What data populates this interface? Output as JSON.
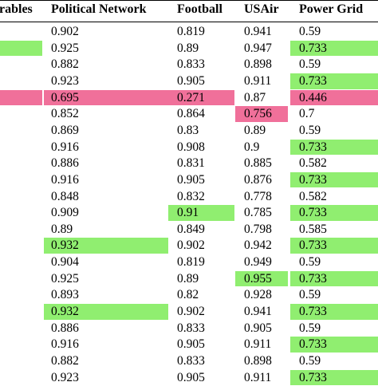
{
  "headers": [
    "rables",
    "Political Network",
    "Football",
    "USAir",
    "Power Grid"
  ],
  "colors": {
    "green_highlight": "#90ee70",
    "pink_highlight": "#f0709a"
  },
  "rows": [
    {
      "political": "0.902",
      "football": "0.819",
      "usair": "0.941",
      "power": "0.59",
      "hl": {
        "left": "",
        "political": "",
        "football": "",
        "usair": "",
        "power": ""
      }
    },
    {
      "political": "0.925",
      "football": "0.89",
      "usair": "0.947",
      "power": "0.733",
      "hl": {
        "left": "green",
        "political": "",
        "football": "",
        "usair": "",
        "power": "green"
      }
    },
    {
      "political": "0.882",
      "football": "0.833",
      "usair": "0.898",
      "power": "0.59",
      "hl": {
        "left": "",
        "political": "",
        "football": "",
        "usair": "",
        "power": ""
      }
    },
    {
      "political": "0.923",
      "football": "0.905",
      "usair": "0.911",
      "power": "0.733",
      "hl": {
        "left": "",
        "political": "",
        "football": "",
        "usair": "",
        "power": "green"
      }
    },
    {
      "political": "0.695",
      "football": "0.271",
      "usair": "0.87",
      "power": "0.446",
      "hl": {
        "left": "pink",
        "political": "pink",
        "football": "pink",
        "usair": "",
        "power": "pink"
      }
    },
    {
      "political": "0.852",
      "football": "0.864",
      "usair": "0.756",
      "power": "0.7",
      "hl": {
        "left": "",
        "political": "",
        "football": "",
        "usair": "pink",
        "power": ""
      }
    },
    {
      "political": "0.869",
      "football": "0.83",
      "usair": "0.89",
      "power": "0.59",
      "hl": {
        "left": "",
        "political": "",
        "football": "",
        "usair": "",
        "power": ""
      }
    },
    {
      "political": "0.916",
      "football": "0.908",
      "usair": "0.9",
      "power": "0.733",
      "hl": {
        "left": "",
        "political": "",
        "football": "",
        "usair": "",
        "power": "green"
      }
    },
    {
      "political": "0.886",
      "football": "0.831",
      "usair": "0.885",
      "power": "0.582",
      "hl": {
        "left": "",
        "political": "",
        "football": "",
        "usair": "",
        "power": ""
      }
    },
    {
      "political": "0.916",
      "football": "0.905",
      "usair": "0.876",
      "power": "0.733",
      "hl": {
        "left": "",
        "political": "",
        "football": "",
        "usair": "",
        "power": "green"
      }
    },
    {
      "political": "0.848",
      "football": "0.832",
      "usair": "0.778",
      "power": "0.582",
      "hl": {
        "left": "",
        "political": "",
        "football": "",
        "usair": "",
        "power": ""
      }
    },
    {
      "political": "0.909",
      "football": "0.91",
      "usair": "0.785",
      "power": "0.733",
      "hl": {
        "left": "",
        "political": "",
        "football": "green",
        "usair": "",
        "power": "green"
      }
    },
    {
      "political": "0.89",
      "football": "0.849",
      "usair": "0.798",
      "power": "0.585",
      "hl": {
        "left": "",
        "political": "",
        "football": "",
        "usair": "",
        "power": ""
      }
    },
    {
      "political": "0.932",
      "football": "0.902",
      "usair": "0.942",
      "power": "0.733",
      "hl": {
        "left": "",
        "political": "green",
        "football": "",
        "usair": "",
        "power": "green"
      }
    },
    {
      "political": "0.904",
      "football": "0.819",
      "usair": "0.949",
      "power": "0.59",
      "hl": {
        "left": "",
        "political": "",
        "football": "",
        "usair": "",
        "power": ""
      }
    },
    {
      "political": "0.925",
      "football": "0.89",
      "usair": "0.955",
      "power": "0.733",
      "hl": {
        "left": "",
        "political": "",
        "football": "",
        "usair": "green",
        "power": "green"
      }
    },
    {
      "political": "0.893",
      "football": "0.82",
      "usair": "0.928",
      "power": "0.59",
      "hl": {
        "left": "",
        "political": "",
        "football": "",
        "usair": "",
        "power": ""
      }
    },
    {
      "political": "0.932",
      "football": "0.902",
      "usair": "0.941",
      "power": "0.733",
      "hl": {
        "left": "",
        "political": "green",
        "football": "",
        "usair": "",
        "power": "green"
      }
    },
    {
      "political": "0.886",
      "football": "0.833",
      "usair": "0.905",
      "power": "0.59",
      "hl": {
        "left": "",
        "political": "",
        "football": "",
        "usair": "",
        "power": ""
      }
    },
    {
      "political": "0.916",
      "football": "0.905",
      "usair": "0.911",
      "power": "0.733",
      "hl": {
        "left": "",
        "political": "",
        "football": "",
        "usair": "",
        "power": "green"
      }
    },
    {
      "political": "0.882",
      "football": "0.833",
      "usair": "0.898",
      "power": "0.59",
      "hl": {
        "left": "",
        "political": "",
        "football": "",
        "usair": "",
        "power": ""
      }
    },
    {
      "political": "0.923",
      "football": "0.905",
      "usair": "0.911",
      "power": "0.733",
      "hl": {
        "left": "",
        "political": "",
        "football": "",
        "usair": "",
        "power": "green"
      }
    }
  ]
}
